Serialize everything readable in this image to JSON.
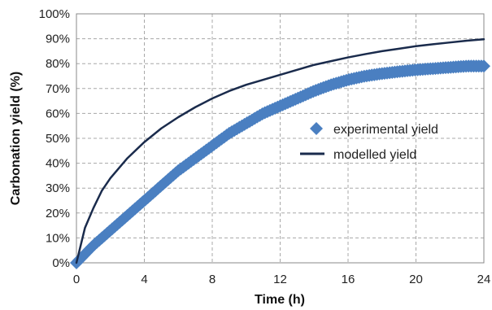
{
  "chart_data": {
    "type": "line",
    "xlabel": "Time (h)",
    "ylabel": "Carbonation yield (%)",
    "xlim": [
      0,
      24
    ],
    "ylim": [
      0,
      100
    ],
    "x_ticks": [
      "0",
      "4",
      "8",
      "12",
      "16",
      "20",
      "24"
    ],
    "y_ticks": [
      "0%",
      "10%",
      "20%",
      "30%",
      "40%",
      "50%",
      "60%",
      "70%",
      "80%",
      "90%",
      "100%"
    ],
    "grid": true,
    "legend_position": "right",
    "series": [
      {
        "name": "experimental yield",
        "style": "marker-diamond",
        "color": "#4a7fc1",
        "x": [
          0,
          1,
          2,
          3,
          4,
          5,
          6,
          7,
          8,
          9,
          10,
          11,
          12,
          13,
          14,
          15,
          16,
          17,
          18,
          19,
          20,
          21,
          22,
          23,
          24
        ],
        "y": [
          0,
          7,
          13,
          19,
          25,
          31,
          37,
          42,
          47,
          52,
          56,
          60,
          63,
          66,
          69,
          71.5,
          73.5,
          75,
          76,
          76.8,
          77.5,
          78,
          78.5,
          79,
          79
        ]
      },
      {
        "name": "modelled yield",
        "style": "line",
        "color": "#1a2b4c",
        "x": [
          0,
          0.5,
          1,
          1.5,
          2,
          2.5,
          3,
          4,
          5,
          6,
          7,
          8,
          9,
          10,
          11,
          12,
          13,
          14,
          15,
          16,
          17,
          18,
          19,
          20,
          21,
          22,
          23,
          24
        ],
        "y": [
          0,
          14,
          22,
          29,
          34,
          38,
          42,
          48.5,
          54,
          58.5,
          62.5,
          66,
          69,
          71.5,
          73.5,
          75.5,
          77.5,
          79.5,
          81,
          82.5,
          83.8,
          85,
          86,
          87,
          87.8,
          88.5,
          89.2,
          89.8
        ]
      }
    ]
  }
}
